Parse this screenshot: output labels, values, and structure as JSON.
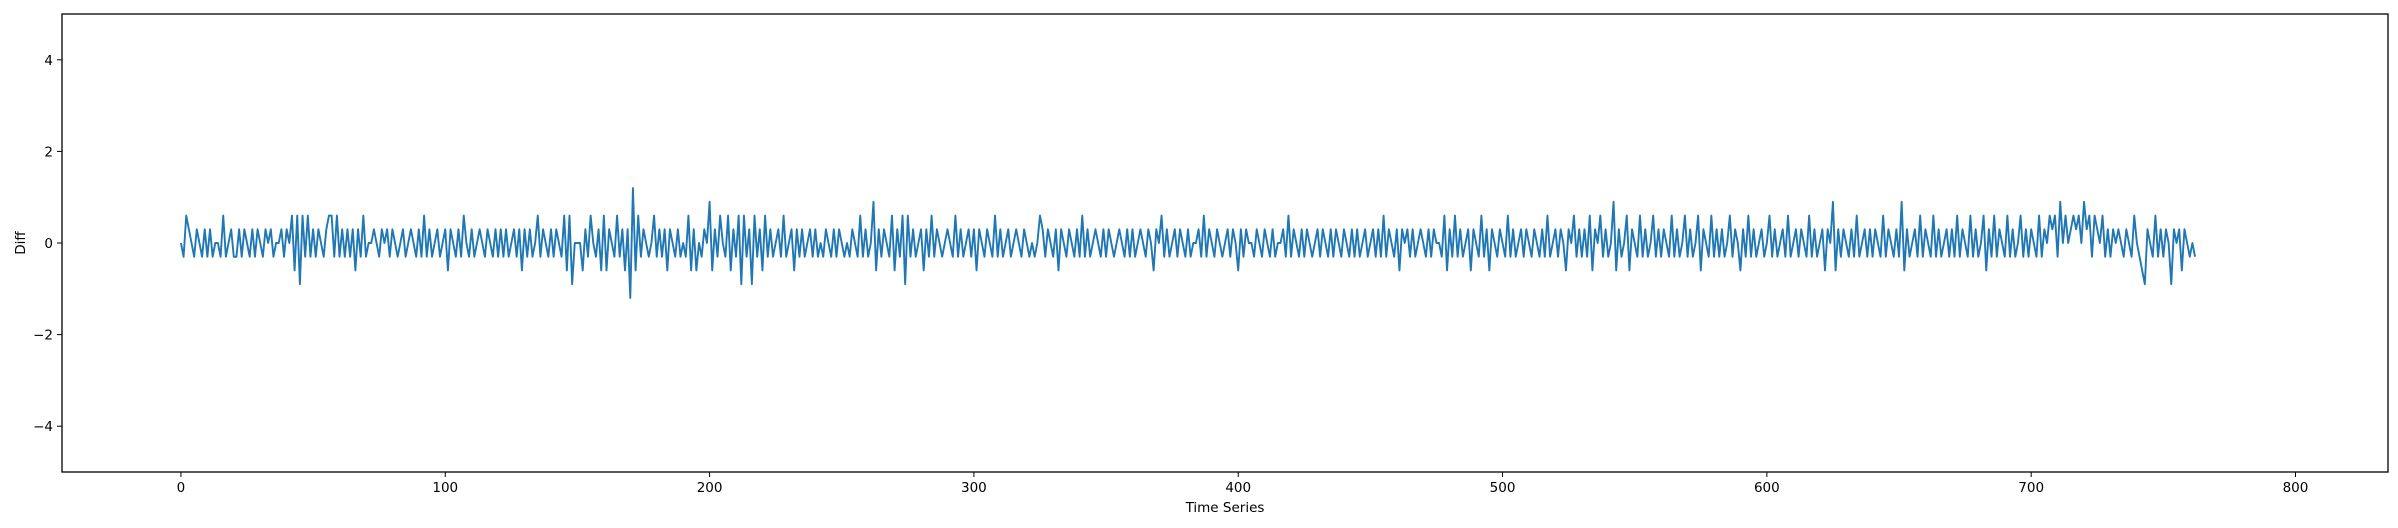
{
  "chart_data": {
    "type": "line",
    "title": "",
    "xlabel": "Time Series",
    "ylabel": "Diff",
    "xlim": [
      -45,
      835
    ],
    "ylim": [
      -5,
      5
    ],
    "xticks": [
      0,
      100,
      200,
      300,
      400,
      500,
      600,
      700,
      800
    ],
    "yticks": [
      -4,
      -2,
      0,
      2,
      4
    ],
    "ytick_labels": [
      "−4",
      "−2",
      "0",
      "2",
      "4"
    ],
    "grid": false,
    "series": [
      {
        "color": "#1f77b4",
        "x_start": 0,
        "x_step": 1,
        "values": [
          0.0,
          -0.3,
          0.6,
          0.3,
          0.0,
          -0.3,
          0.3,
          0.0,
          -0.3,
          0.3,
          -0.3,
          0.3,
          -0.3,
          0.0,
          0.0,
          -0.3,
          0.6,
          -0.3,
          0.0,
          0.3,
          -0.3,
          -0.3,
          0.3,
          -0.3,
          0.3,
          0.0,
          -0.3,
          0.3,
          -0.3,
          0.3,
          0.0,
          -0.3,
          0.3,
          0.0,
          0.3,
          -0.3,
          0.0,
          0.0,
          0.3,
          -0.3,
          0.3,
          0.0,
          0.6,
          -0.6,
          0.6,
          -0.9,
          0.6,
          -0.3,
          0.6,
          -0.3,
          0.3,
          -0.3,
          0.3,
          0.0,
          -0.3,
          0.3,
          0.6,
          0.6,
          -0.3,
          0.6,
          -0.3,
          0.3,
          -0.3,
          0.3,
          -0.3,
          0.3,
          -0.6,
          0.3,
          -0.3,
          0.6,
          -0.3,
          0.0,
          0.0,
          0.3,
          0.0,
          -0.3,
          0.3,
          0.0,
          0.3,
          -0.3,
          0.3,
          0.0,
          -0.3,
          0.0,
          0.3,
          -0.3,
          0.0,
          0.3,
          0.0,
          -0.3,
          0.3,
          -0.3,
          0.6,
          -0.3,
          0.3,
          -0.3,
          0.0,
          0.3,
          -0.3,
          0.0,
          0.3,
          -0.6,
          0.3,
          0.0,
          -0.3,
          0.3,
          -0.3,
          0.6,
          0.0,
          -0.3,
          0.3,
          -0.3,
          0.0,
          0.3,
          0.0,
          -0.3,
          0.3,
          0.0,
          -0.3,
          0.3,
          -0.3,
          0.3,
          -0.3,
          0.3,
          -0.3,
          0.0,
          0.3,
          -0.3,
          0.3,
          -0.6,
          0.3,
          -0.3,
          0.3,
          -0.3,
          0.0,
          0.6,
          -0.3,
          0.3,
          0.0,
          -0.3,
          0.3,
          -0.3,
          0.3,
          0.0,
          -0.3,
          0.6,
          -0.6,
          0.6,
          -0.9,
          0.0,
          0.0,
          0.0,
          -0.6,
          0.3,
          -0.3,
          0.6,
          0.0,
          -0.3,
          0.3,
          -0.6,
          0.6,
          -0.6,
          0.3,
          0.0,
          -0.3,
          0.6,
          -0.3,
          0.3,
          -0.6,
          0.3,
          -1.2,
          1.2,
          -0.6,
          0.6,
          -0.3,
          0.3,
          0.0,
          -0.3,
          0.0,
          0.6,
          -0.3,
          0.3,
          -0.3,
          0.3,
          -0.6,
          0.3,
          0.0,
          -0.3,
          0.3,
          -0.3,
          0.0,
          -0.3,
          0.6,
          -0.6,
          0.3,
          -0.6,
          0.0,
          -0.3,
          0.3,
          0.0,
          0.9,
          -0.6,
          0.3,
          -0.3,
          0.6,
          0.0,
          -0.3,
          0.6,
          -0.6,
          0.3,
          -0.3,
          0.6,
          -0.9,
          0.6,
          -0.3,
          0.3,
          -0.9,
          0.6,
          -0.3,
          0.3,
          -0.6,
          0.6,
          -0.3,
          0.3,
          -0.3,
          0.0,
          0.3,
          -0.3,
          0.6,
          -0.3,
          0.0,
          0.3,
          -0.6,
          0.3,
          -0.3,
          0.3,
          -0.3,
          0.0,
          0.3,
          -0.3,
          0.3,
          -0.3,
          0.0,
          -0.3,
          0.3,
          0.0,
          -0.3,
          0.3,
          -0.3,
          0.3,
          0.0,
          -0.3,
          0.0,
          -0.3,
          0.3,
          0.0,
          -0.3,
          0.6,
          -0.3,
          0.3,
          -0.3,
          0.0,
          0.9,
          -0.6,
          0.3,
          -0.3,
          0.3,
          0.0,
          -0.3,
          0.6,
          -0.6,
          0.3,
          -0.3,
          0.6,
          -0.9,
          0.6,
          -0.3,
          0.3,
          -0.3,
          0.0,
          0.3,
          -0.6,
          0.3,
          -0.3,
          0.6,
          -0.3,
          0.3,
          0.0,
          -0.3,
          0.0,
          0.3,
          0.0,
          -0.3,
          0.6,
          -0.3,
          0.3,
          -0.3,
          0.0,
          0.3,
          -0.3,
          0.3,
          -0.6,
          0.3,
          0.0,
          -0.3,
          0.3,
          0.0,
          -0.3,
          0.6,
          -0.3,
          0.3,
          -0.3,
          0.0,
          0.3,
          -0.3,
          0.0,
          0.3,
          0.0,
          -0.3,
          0.3,
          0.0,
          -0.3,
          0.0,
          -0.3,
          0.0,
          0.6,
          0.3,
          -0.3,
          0.3,
          0.0,
          -0.3,
          0.3,
          -0.6,
          0.3,
          0.0,
          -0.3,
          0.3,
          0.0,
          -0.3,
          0.3,
          -0.3,
          0.6,
          -0.3,
          0.3,
          -0.3,
          0.0,
          0.3,
          0.0,
          -0.3,
          0.3,
          -0.3,
          0.3,
          0.0,
          -0.3,
          0.0,
          0.3,
          0.0,
          -0.3,
          0.3,
          -0.3,
          0.3,
          -0.3,
          0.0,
          0.3,
          0.0,
          -0.3,
          0.3,
          0.0,
          -0.6,
          0.3,
          0.0,
          0.6,
          -0.3,
          0.3,
          -0.3,
          0.0,
          0.3,
          -0.3,
          0.3,
          0.0,
          -0.3,
          0.3,
          -0.3,
          0.0,
          0.0,
          0.3,
          -0.3,
          0.6,
          -0.3,
          0.3,
          0.0,
          -0.3,
          0.3,
          0.0,
          -0.3,
          0.0,
          0.3,
          -0.3,
          0.3,
          0.0,
          -0.6,
          0.3,
          -0.3,
          0.3,
          0.0,
          0.0,
          -0.3,
          0.3,
          0.0,
          -0.3,
          0.3,
          0.0,
          -0.3,
          0.3,
          -0.3,
          0.0,
          0.0,
          0.3,
          -0.3,
          0.6,
          -0.3,
          0.3,
          0.0,
          -0.3,
          0.3,
          -0.3,
          0.3,
          0.0,
          -0.3,
          0.0,
          0.3,
          -0.3,
          0.3,
          0.0,
          -0.3,
          0.3,
          -0.3,
          0.3,
          0.0,
          -0.3,
          0.3,
          0.0,
          -0.3,
          0.3,
          -0.3,
          0.3,
          -0.3,
          0.0,
          0.3,
          -0.3,
          0.0,
          0.3,
          -0.3,
          0.3,
          -0.3,
          0.6,
          -0.3,
          0.3,
          0.0,
          -0.3,
          0.3,
          -0.6,
          0.3,
          0.0,
          0.3,
          -0.3,
          0.3,
          -0.3,
          0.0,
          0.3,
          0.0,
          -0.3,
          0.3,
          -0.3,
          0.3,
          0.0,
          0.0,
          -0.3,
          0.6,
          -0.6,
          0.3,
          -0.3,
          0.6,
          -0.3,
          0.3,
          -0.3,
          0.0,
          0.3,
          -0.6,
          0.3,
          0.0,
          -0.3,
          0.6,
          -0.3,
          0.3,
          -0.6,
          0.3,
          0.0,
          -0.3,
          0.3,
          0.0,
          -0.3,
          0.6,
          -0.3,
          0.3,
          -0.3,
          0.0,
          0.3,
          -0.3,
          0.3,
          0.0,
          -0.3,
          0.3,
          0.0,
          -0.3,
          0.3,
          -0.3,
          0.6,
          -0.3,
          0.0,
          0.3,
          -0.3,
          0.3,
          0.0,
          -0.6,
          0.3,
          0.0,
          0.6,
          -0.3,
          0.3,
          -0.3,
          0.3,
          -0.3,
          0.6,
          -0.6,
          0.3,
          0.0,
          0.6,
          -0.3,
          0.3,
          -0.3,
          0.0,
          0.9,
          -0.6,
          0.3,
          -0.3,
          0.0,
          0.6,
          -0.6,
          0.3,
          0.0,
          -0.3,
          0.6,
          -0.3,
          0.3,
          -0.3,
          0.0,
          0.6,
          -0.3,
          0.3,
          -0.3,
          0.3,
          0.0,
          -0.3,
          0.6,
          -0.3,
          0.3,
          -0.3,
          0.0,
          0.6,
          -0.3,
          0.3,
          -0.3,
          0.0,
          0.6,
          -0.6,
          0.3,
          0.0,
          -0.3,
          0.6,
          -0.3,
          0.3,
          -0.3,
          0.3,
          -0.3,
          0.0,
          0.6,
          -0.3,
          0.3,
          0.0,
          -0.6,
          0.3,
          -0.3,
          0.6,
          -0.3,
          0.3,
          -0.3,
          0.0,
          0.3,
          -0.3,
          0.0,
          0.6,
          -0.3,
          0.3,
          -0.3,
          0.0,
          0.3,
          -0.3,
          0.6,
          -0.3,
          0.0,
          0.3,
          -0.3,
          0.3,
          0.0,
          -0.3,
          0.6,
          -0.3,
          0.3,
          -0.3,
          0.0,
          0.3,
          -0.6,
          0.3,
          0.0,
          0.9,
          -0.6,
          0.3,
          -0.3,
          0.3,
          0.0,
          -0.3,
          0.3,
          -0.3,
          0.6,
          -0.3,
          0.0,
          0.3,
          -0.3,
          0.3,
          -0.3,
          0.3,
          0.0,
          -0.3,
          0.6,
          -0.3,
          0.3,
          0.0,
          -0.3,
          0.3,
          -0.3,
          0.9,
          -0.6,
          0.3,
          -0.3,
          0.0,
          0.3,
          -0.3,
          0.6,
          -0.3,
          0.3,
          0.0,
          -0.3,
          0.6,
          -0.3,
          0.3,
          -0.3,
          0.0,
          0.3,
          -0.3,
          0.3,
          -0.3,
          0.6,
          -0.3,
          0.3,
          0.0,
          -0.3,
          0.6,
          -0.3,
          0.3,
          -0.3,
          0.0,
          0.6,
          -0.6,
          0.3,
          -0.3,
          0.6,
          -0.3,
          0.3,
          0.0,
          -0.3,
          0.6,
          -0.3,
          0.3,
          -0.3,
          0.0,
          0.6,
          -0.3,
          0.3,
          -0.3,
          0.3,
          0.0,
          -0.3,
          0.6,
          -0.3,
          0.3,
          0.0,
          0.6,
          0.3,
          0.6,
          -0.3,
          0.9,
          0.0,
          0.6,
          0.0,
          0.3,
          0.6,
          0.3,
          0.6,
          0.0,
          0.9,
          0.3,
          0.6,
          -0.3,
          0.6,
          0.3,
          0.0,
          0.6,
          -0.3,
          0.3,
          -0.3,
          0.3,
          0.0,
          0.3,
          0.0,
          -0.3,
          0.3,
          0.0,
          -0.3,
          0.6,
          0.0,
          -0.3,
          -0.6,
          -0.9,
          0.3,
          0.0,
          -0.3,
          0.6,
          -0.3,
          0.3,
          -0.3,
          0.3,
          0.0,
          -0.9,
          0.3,
          0.0,
          0.3,
          -0.6,
          0.3,
          0.0,
          -0.3,
          0.0,
          -0.3
        ]
      }
    ]
  }
}
